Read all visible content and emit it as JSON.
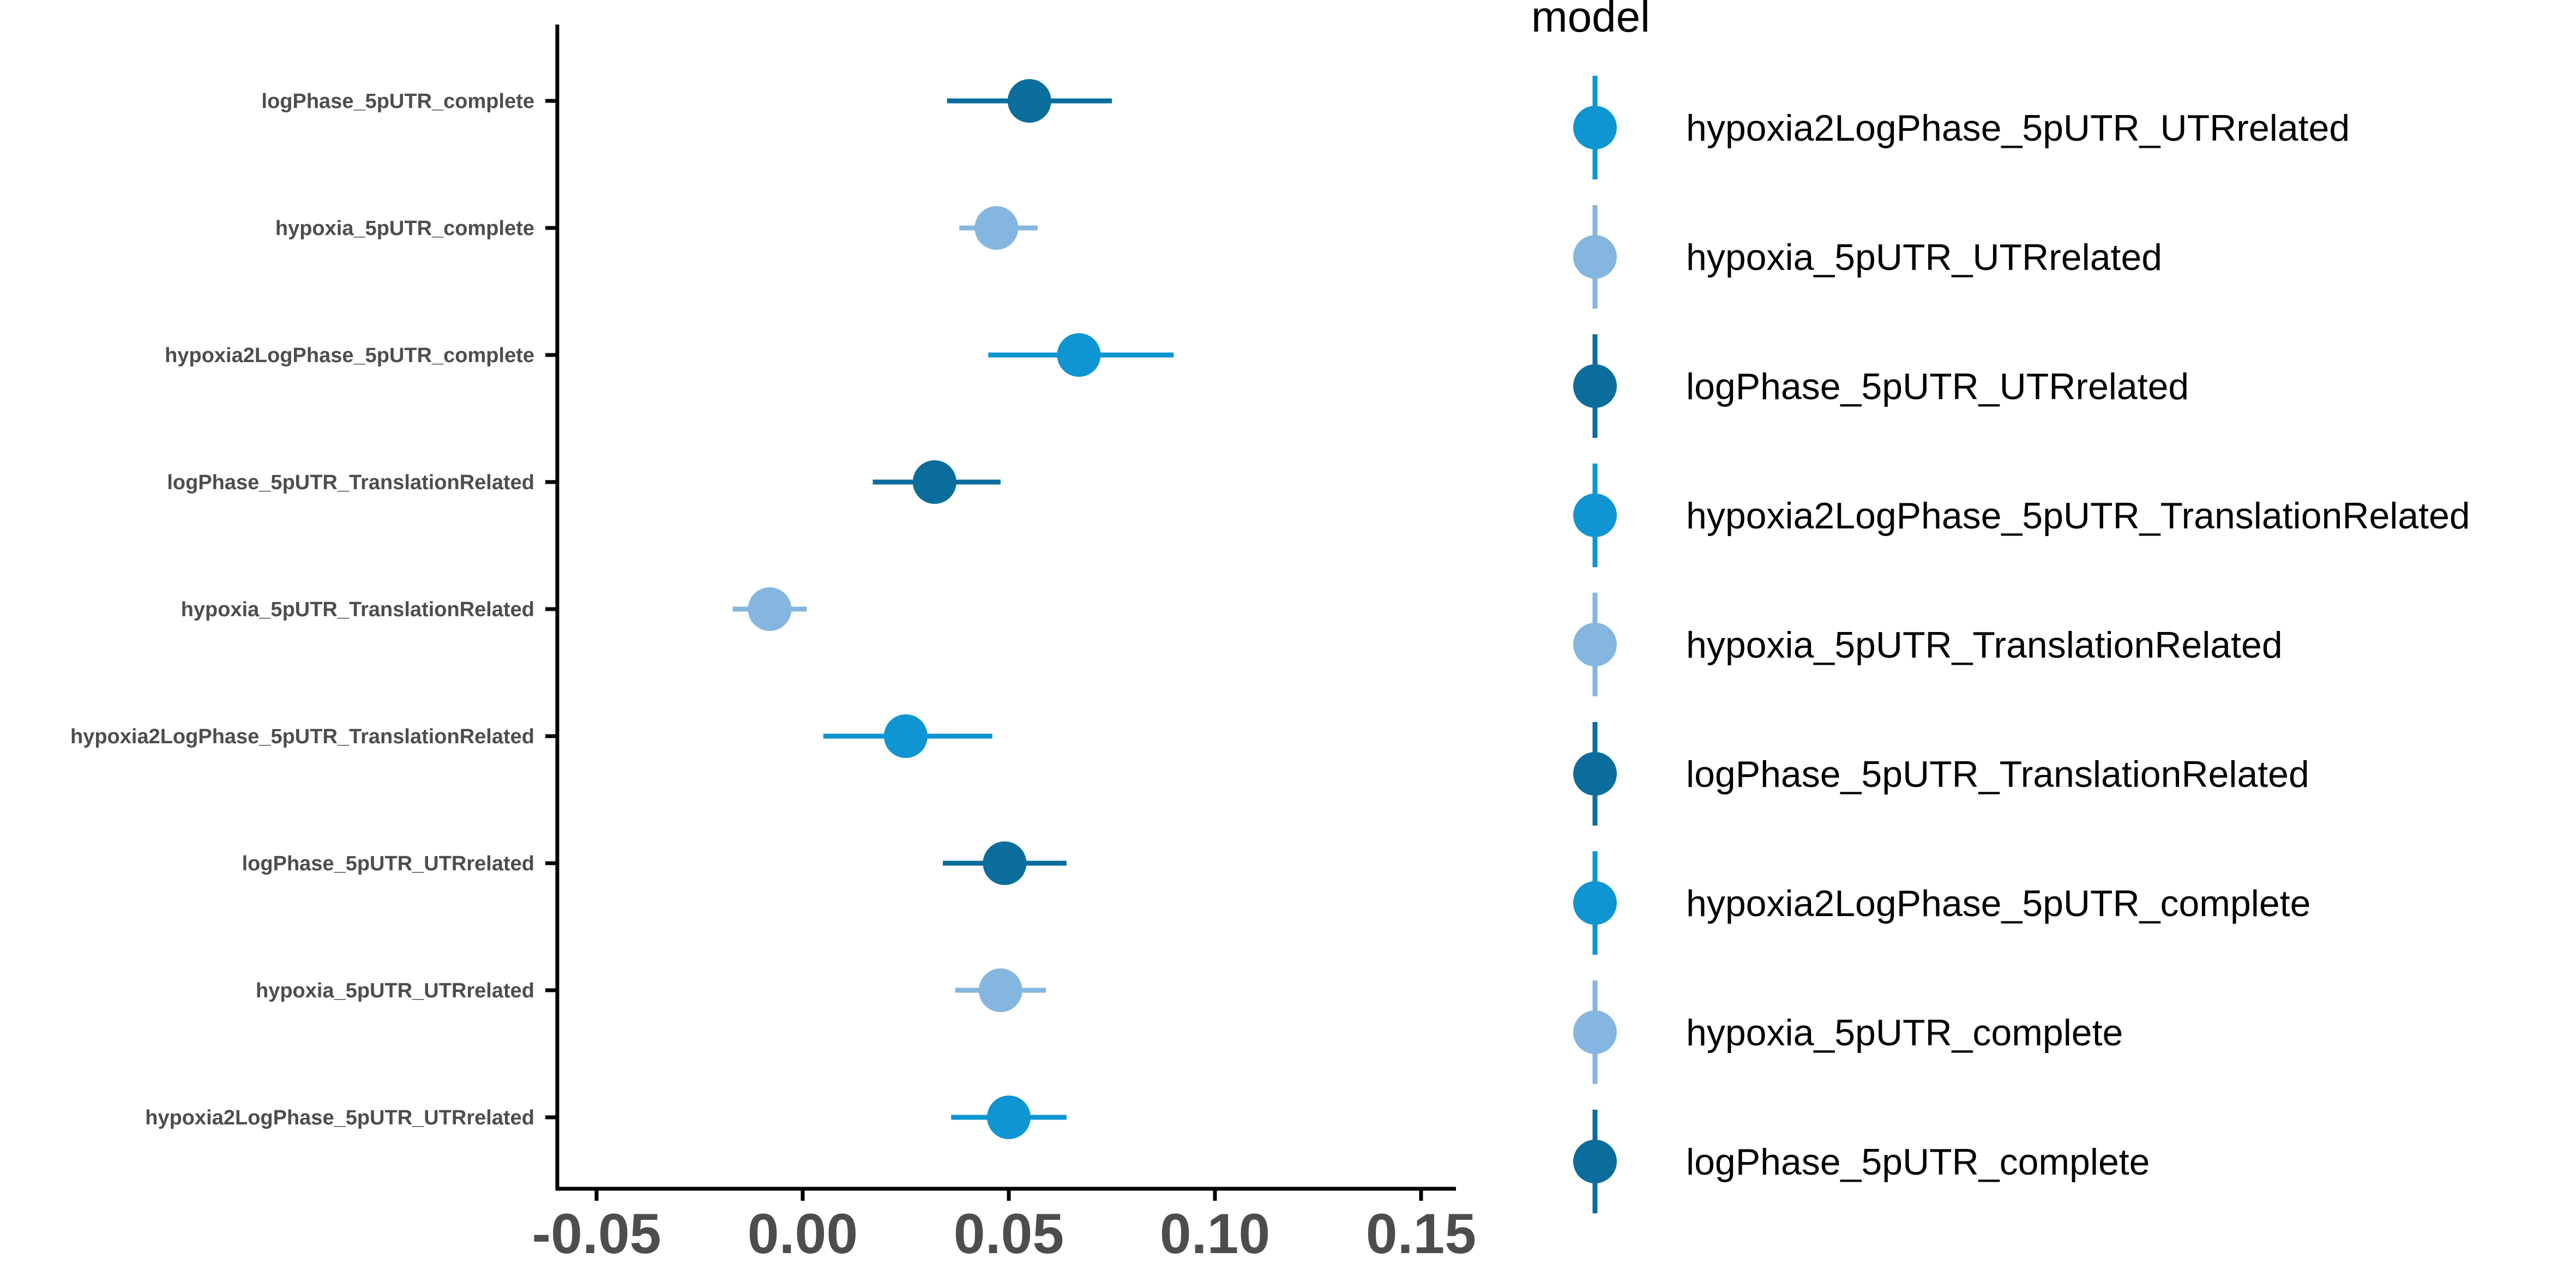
{
  "chart_data": {
    "type": "scatter",
    "subtype": "forest-plot",
    "title": "",
    "xlabel": "",
    "ylabel": "",
    "xlim": [
      -0.06,
      0.16
    ],
    "x_ticks": [
      -0.05,
      0.0,
      0.05,
      0.1,
      0.15
    ],
    "x_tick_labels": [
      "-0.05",
      "0.00",
      "0.05",
      "0.10",
      "0.15"
    ],
    "grid": false,
    "legend": {
      "title": "model",
      "placement": "right",
      "entries": [
        "hypoxia2LogPhase_5pUTR_UTRrelated",
        "hypoxia_5pUTR_UTRrelated",
        "logPhase_5pUTR_UTRrelated",
        "hypoxia2LogPhase_5pUTR_TranslationRelated",
        "hypoxia_5pUTR_TranslationRelated",
        "logPhase_5pUTR_TranslationRelated",
        "hypoxia2LogPhase_5pUTR_complete",
        "hypoxia_5pUTR_complete",
        "logPhase_5pUTR_complete"
      ]
    },
    "colors": {
      "hypoxia2LogPhase": "#0f95d1",
      "hypoxia": "#85b6e0",
      "logPhase": "#0b6d9c"
    },
    "series": [
      {
        "name": "logPhase_5pUTR_complete",
        "group": "logPhase",
        "estimate": 0.055,
        "lower": 0.035,
        "upper": 0.075
      },
      {
        "name": "hypoxia_5pUTR_complete",
        "group": "hypoxia",
        "estimate": 0.047,
        "lower": 0.038,
        "upper": 0.057
      },
      {
        "name": "hypoxia2LogPhase_5pUTR_complete",
        "group": "hypoxia2LogPhase",
        "estimate": 0.067,
        "lower": 0.045,
        "upper": 0.09
      },
      {
        "name": "logPhase_5pUTR_TranslationRelated",
        "group": "logPhase",
        "estimate": 0.032,
        "lower": 0.017,
        "upper": 0.048
      },
      {
        "name": "hypoxia_5pUTR_TranslationRelated",
        "group": "hypoxia",
        "estimate": -0.008,
        "lower": -0.017,
        "upper": 0.001
      },
      {
        "name": "hypoxia2LogPhase_5pUTR_TranslationRelated",
        "group": "hypoxia2LogPhase",
        "estimate": 0.025,
        "lower": 0.005,
        "upper": 0.046
      },
      {
        "name": "logPhase_5pUTR_UTRrelated",
        "group": "logPhase",
        "estimate": 0.049,
        "lower": 0.034,
        "upper": 0.064
      },
      {
        "name": "hypoxia_5pUTR_UTRrelated",
        "group": "hypoxia",
        "estimate": 0.048,
        "lower": 0.037,
        "upper": 0.059
      },
      {
        "name": "hypoxia2LogPhase_5pUTR_UTRrelated",
        "group": "hypoxia2LogPhase",
        "estimate": 0.05,
        "lower": 0.036,
        "upper": 0.064
      }
    ]
  }
}
